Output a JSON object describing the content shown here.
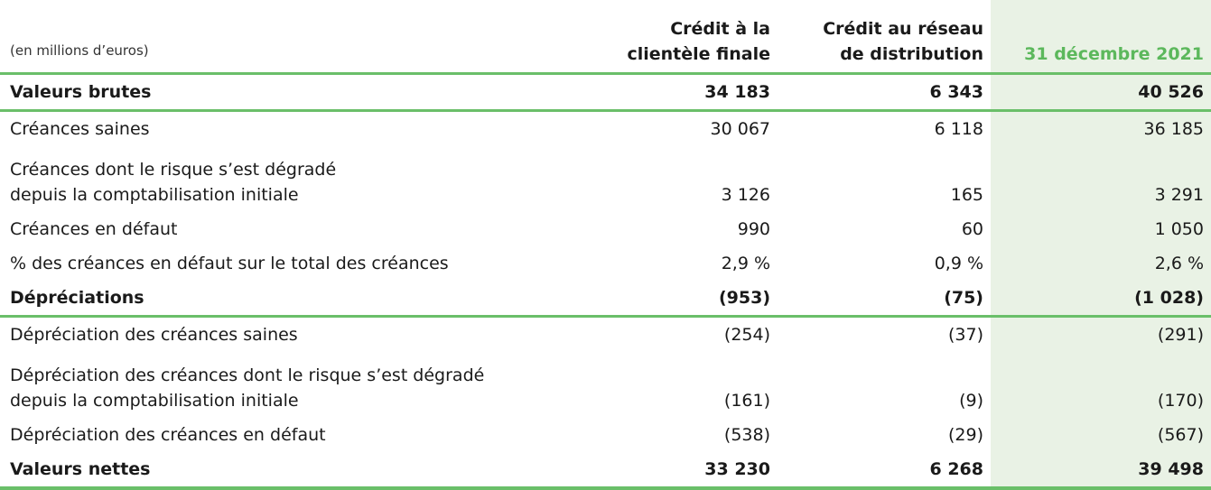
{
  "header": {
    "unit_note": "(en millions d’euros)",
    "col_a_line1": "Crédit à la",
    "col_a_line2": "clientèle finale",
    "col_b_line1": "Crédit au réseau",
    "col_b_line2": "de distribution",
    "col_total": "31 décembre 2021"
  },
  "rows": [
    {
      "line1": "Valeurs brutes",
      "a": "34 183",
      "b": "6 343",
      "c": "40 526"
    },
    {
      "line1": "Créances saines",
      "a": "30 067",
      "b": "6 118",
      "c": "36 185"
    },
    {
      "line1": "Créances dont le risque s’est dégradé",
      "line2": "depuis la comptabilisation initiale",
      "a": "3 126",
      "b": "165",
      "c": "3 291"
    },
    {
      "line1": "Créances en défaut",
      "a": "990",
      "b": "60",
      "c": "1 050"
    },
    {
      "line1": "% des créances en défaut sur le total des créances",
      "a": "2,9 %",
      "b": "0,9 %",
      "c": "2,6 %"
    },
    {
      "line1": "Dépréciations",
      "a": "(953)",
      "b": "(75)",
      "c": "(1 028)"
    },
    {
      "line1": "Dépréciation des créances saines",
      "a": "(254)",
      "b": "(37)",
      "c": "(291)"
    },
    {
      "line1": "Dépréciation des créances dont le risque s’est dégradé",
      "line2": "depuis la comptabilisation initiale",
      "a": "(161)",
      "b": "(9)",
      "c": "(170)"
    },
    {
      "line1": "Dépréciation des créances en défaut",
      "a": "(538)",
      "b": "(29)",
      "c": "(567)"
    },
    {
      "line1": "Valeurs nettes",
      "a": "33 230",
      "b": "6 268",
      "c": "39 498"
    }
  ],
  "style": {
    "accent_green": "#6abf69",
    "year_text_green": "#5cb85c",
    "highlight_bg": "#e9f2e5"
  }
}
